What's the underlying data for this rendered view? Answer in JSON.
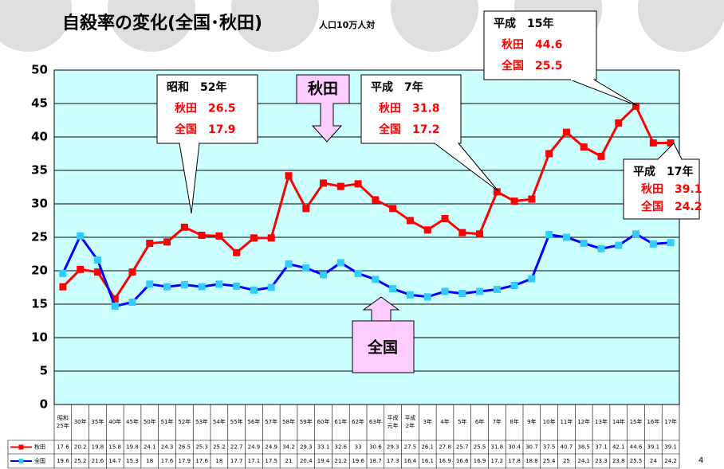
{
  "chart_data": {
    "type": "line",
    "title": "自殺率の変化(全国･秋田)",
    "subtitle": "人口10万人対",
    "page_number": "4",
    "categories": [
      "昭和\n25年",
      "30年",
      "35年",
      "40年",
      "45年",
      "50年",
      "51年",
      "52年",
      "53年",
      "54年",
      "55年",
      "56年",
      "57年",
      "58年",
      "59年",
      "60年",
      "61年",
      "62年",
      "63年",
      "平成\n元年",
      "平成\n2年",
      "3年",
      "4年",
      "5年",
      "6年",
      "7年",
      "8年",
      "9年",
      "10年",
      "11年",
      "12年",
      "13年",
      "14年",
      "15年",
      "16年",
      "17年"
    ],
    "series": [
      {
        "name": "秋田",
        "color": "#ff0000",
        "marker_color": "#ff0000",
        "values": [
          17.6,
          20.2,
          19.8,
          15.8,
          19.8,
          24.1,
          24.3,
          26.5,
          25.3,
          25.2,
          22.7,
          24.9,
          24.9,
          34.2,
          29.3,
          33.1,
          32.6,
          33,
          30.6,
          29.3,
          27.5,
          26.1,
          27.8,
          25.7,
          25.5,
          31.8,
          30.4,
          30.7,
          37.5,
          40.7,
          38.5,
          37.1,
          42.1,
          44.6,
          39.1,
          39.1
        ]
      },
      {
        "name": "全国",
        "color": "#0000ff",
        "marker_color": "#33ccff",
        "values": [
          19.6,
          25.2,
          21.6,
          14.7,
          15.3,
          18,
          17.6,
          17.9,
          17.6,
          18,
          17.7,
          17.1,
          17.5,
          21,
          20.4,
          19.4,
          21.2,
          19.6,
          18.7,
          17.3,
          16.4,
          16.1,
          16.9,
          16.6,
          16.9,
          17.2,
          17.8,
          18.8,
          25.4,
          25,
          24.1,
          23.3,
          23.8,
          25.5,
          24,
          24.2
        ]
      }
    ],
    "ylim": [
      0,
      50
    ],
    "yticks": [
      0,
      5,
      10,
      15,
      20,
      25,
      30,
      35,
      40,
      45,
      50
    ],
    "grid": true,
    "callouts": [
      {
        "lines": [
          "昭和　52年",
          "秋田　26.5",
          "全国　17.9"
        ]
      },
      {
        "lines": [
          "平成　7年",
          "秋田　31.8",
          "全国　17.2"
        ]
      },
      {
        "lines": [
          "平成　15年",
          "秋田　44.6",
          "全国　25.5"
        ]
      },
      {
        "lines": [
          "平成　17年",
          "秋田　39.1",
          "全国　24.2"
        ]
      }
    ],
    "series_labels": [
      "秋田",
      "全国"
    ]
  }
}
